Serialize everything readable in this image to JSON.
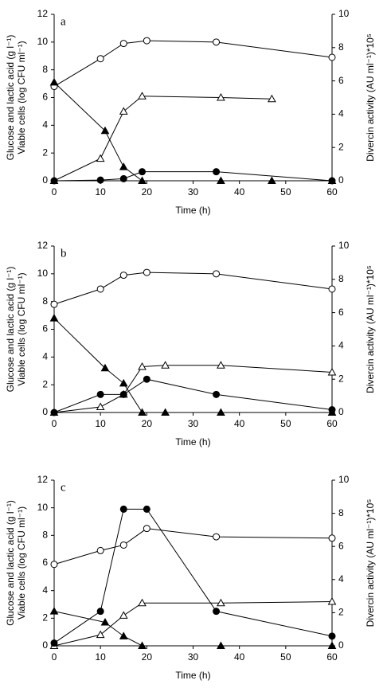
{
  "chart_data": [
    {
      "type": "line",
      "label": "a",
      "xlabel": "Time (h)",
      "ylabel": [
        "Glucose and lactic acid (g l⁻¹)",
        "Viable cells (log CFU ml⁻¹)"
      ],
      "y2label": "Divercin activity (AU ml⁻¹)*10⁵",
      "xlim": [
        0,
        60
      ],
      "xticks": [
        0,
        10,
        20,
        30,
        40,
        50,
        60
      ],
      "ylim": [
        0,
        12
      ],
      "yticks": [
        0,
        2,
        4,
        6,
        8,
        10,
        12
      ],
      "y2lim": [
        0,
        10
      ],
      "y2ticks": [
        0,
        2,
        4,
        6,
        8,
        10
      ],
      "series": [
        {
          "color": "#000",
          "marker": "circle",
          "filled": false,
          "x": [
            0,
            10,
            15,
            20,
            35,
            60
          ],
          "values": [
            6.8,
            8.8,
            9.9,
            10.1,
            10.0,
            8.9
          ]
        },
        {
          "color": "#000",
          "marker": "triangle",
          "filled": true,
          "x": [
            0,
            11,
            15,
            19,
            36,
            47,
            60
          ],
          "values": [
            7.1,
            3.6,
            1.0,
            0,
            0,
            0,
            0
          ]
        },
        {
          "color": "#000",
          "marker": "triangle",
          "filled": false,
          "x": [
            0,
            10,
            15,
            19,
            36,
            47
          ],
          "values": [
            0,
            1.6,
            5.0,
            6.1,
            6.0,
            5.9
          ]
        },
        {
          "color": "#000",
          "marker": "circle",
          "filled": true,
          "x": [
            0,
            10,
            15,
            19,
            35,
            60
          ],
          "values": [
            0,
            0.05,
            0.15,
            0.65,
            0.65,
            0
          ]
        }
      ]
    },
    {
      "type": "line",
      "label": "b",
      "xlabel": "Time (h)",
      "ylabel": [
        "Glucose and lactic acid (g l⁻¹)",
        "Viable cells (log CFU ml⁻¹)"
      ],
      "y2label": "Divercin activity (AU ml⁻¹)*10⁵",
      "xlim": [
        0,
        60
      ],
      "xticks": [
        0,
        10,
        20,
        30,
        40,
        50,
        60
      ],
      "ylim": [
        0,
        12
      ],
      "yticks": [
        0,
        2,
        4,
        6,
        8,
        10,
        12
      ],
      "y2lim": [
        0,
        10
      ],
      "y2ticks": [
        0,
        2,
        4,
        6,
        8,
        10
      ],
      "series": [
        {
          "color": "#000",
          "marker": "circle",
          "filled": false,
          "x": [
            0,
            10,
            15,
            20,
            35,
            60
          ],
          "values": [
            7.8,
            8.9,
            9.9,
            10.1,
            10.0,
            8.9
          ]
        },
        {
          "color": "#000",
          "marker": "triangle",
          "filled": true,
          "x": [
            0,
            11,
            15,
            19,
            24,
            36,
            60
          ],
          "values": [
            6.8,
            3.2,
            2.1,
            0,
            0,
            0,
            0
          ]
        },
        {
          "color": "#000",
          "marker": "triangle",
          "filled": false,
          "x": [
            0,
            10,
            15,
            19,
            24,
            36,
            60
          ],
          "values": [
            0,
            0.4,
            1.3,
            3.3,
            3.4,
            3.4,
            2.9
          ]
        },
        {
          "color": "#000",
          "marker": "circle",
          "filled": true,
          "x": [
            0,
            10,
            15,
            20,
            35,
            60
          ],
          "values": [
            0,
            1.3,
            1.3,
            2.4,
            1.3,
            0.2
          ]
        }
      ]
    },
    {
      "type": "line",
      "label": "c",
      "xlabel": "Time (h)",
      "ylabel": [
        "Glucose and lactic acid (g l⁻¹)",
        "Viable cells (log CFU ml⁻¹)"
      ],
      "y2label": "Divercin activity (AU ml⁻¹)*10⁵",
      "xlim": [
        0,
        60
      ],
      "xticks": [
        0,
        10,
        20,
        30,
        40,
        50,
        60
      ],
      "ylim": [
        0,
        12
      ],
      "yticks": [
        0,
        2,
        4,
        6,
        8,
        10,
        12
      ],
      "y2lim": [
        0,
        10
      ],
      "y2ticks": [
        0,
        2,
        4,
        6,
        8,
        10
      ],
      "series": [
        {
          "color": "#000",
          "marker": "circle",
          "filled": false,
          "x": [
            0,
            10,
            15,
            20,
            35,
            60
          ],
          "values": [
            5.9,
            6.9,
            7.3,
            8.5,
            7.9,
            7.8
          ]
        },
        {
          "color": "#000",
          "marker": "triangle",
          "filled": true,
          "x": [
            0,
            11,
            15,
            19,
            36,
            60
          ],
          "values": [
            2.5,
            1.7,
            0.7,
            0,
            0,
            0
          ]
        },
        {
          "color": "#000",
          "marker": "triangle",
          "filled": false,
          "x": [
            0,
            10,
            15,
            19,
            36,
            60
          ],
          "values": [
            0,
            0.8,
            2.2,
            3.1,
            3.1,
            3.2
          ]
        },
        {
          "color": "#000",
          "marker": "circle",
          "filled": true,
          "x": [
            0,
            10,
            15,
            20,
            35,
            60
          ],
          "values": [
            0.2,
            2.5,
            9.9,
            9.9,
            2.5,
            0.7
          ]
        }
      ]
    }
  ]
}
